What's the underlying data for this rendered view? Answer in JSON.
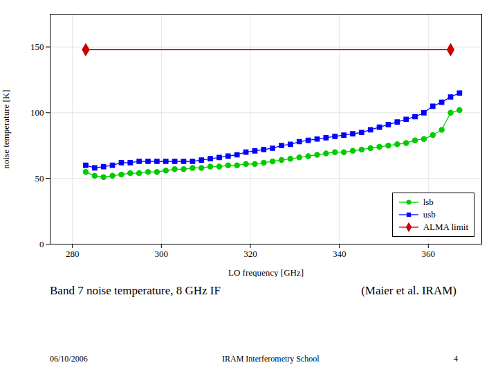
{
  "chart_data": {
    "type": "line",
    "xlabel": "LO frequency [GHz]",
    "ylabel": "noise temperature [K]",
    "series": [
      {
        "name": "lsb",
        "color": "#00cc00",
        "marker": "circle",
        "x": [
          283,
          285,
          287,
          289,
          291,
          293,
          295,
          297,
          299,
          301,
          303,
          305,
          307,
          309,
          311,
          313,
          315,
          317,
          319,
          321,
          323,
          325,
          327,
          329,
          331,
          333,
          335,
          337,
          339,
          341,
          343,
          345,
          347,
          349,
          351,
          353,
          355,
          357,
          359,
          361,
          363,
          365,
          367
        ],
        "values": [
          55,
          52,
          51,
          52,
          53,
          54,
          54,
          55,
          55,
          56,
          57,
          57,
          58,
          58,
          59,
          59,
          60,
          60,
          61,
          61,
          62,
          63,
          64,
          65,
          66,
          67,
          68,
          69,
          70,
          70,
          71,
          72,
          73,
          74,
          75,
          76,
          77,
          79,
          80,
          83,
          87,
          100,
          102
        ]
      },
      {
        "name": "usb",
        "color": "#0000ff",
        "marker": "square",
        "x": [
          283,
          285,
          287,
          289,
          291,
          293,
          295,
          297,
          299,
          301,
          303,
          305,
          307,
          309,
          311,
          313,
          315,
          317,
          319,
          321,
          323,
          325,
          327,
          329,
          331,
          333,
          335,
          337,
          339,
          341,
          343,
          345,
          347,
          349,
          351,
          353,
          355,
          357,
          359,
          361,
          363,
          365,
          367
        ],
        "values": [
          60,
          58,
          59,
          60,
          62,
          62,
          63,
          63,
          63,
          63,
          63,
          63,
          63,
          64,
          65,
          66,
          67,
          68,
          70,
          71,
          72,
          73,
          75,
          76,
          78,
          79,
          80,
          81,
          82,
          83,
          84,
          85,
          87,
          89,
          91,
          93,
          95,
          97,
          100,
          105,
          108,
          112,
          115
        ]
      },
      {
        "name": "ALMA limit",
        "color": "#cc0000",
        "marker": "diamond",
        "x": [
          283,
          365
        ],
        "values": [
          148,
          148
        ]
      }
    ],
    "xlim": [
      275,
      372
    ],
    "ylim": [
      0,
      175
    ],
    "xticks": [
      280,
      300,
      320,
      340,
      360
    ],
    "yticks": [
      0,
      50,
      100,
      150
    ],
    "grid": true,
    "legend": "lower right",
    "annotations": [
      "Band 7 noise temperature, 8 GHz IF",
      "(Maier et al. IRAM)",
      "06/10/2006",
      "IRAM Interferometry School",
      "4"
    ]
  }
}
